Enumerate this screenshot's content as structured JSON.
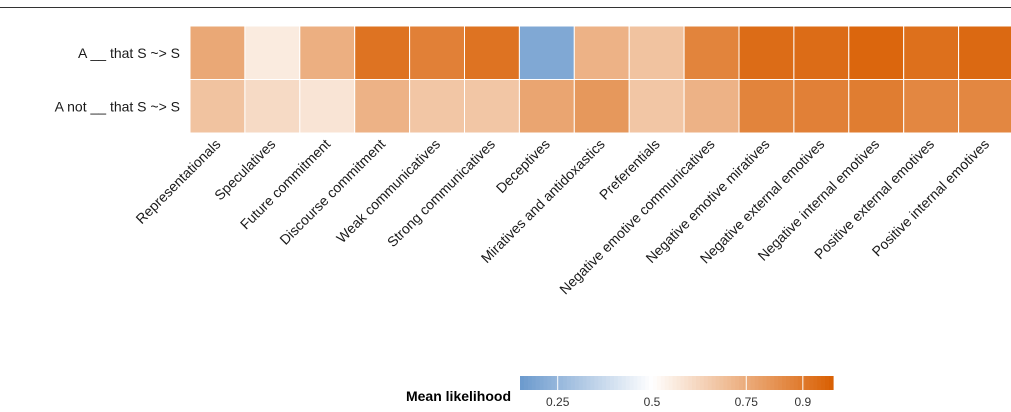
{
  "chart_data": {
    "type": "heatmap",
    "rows": [
      "A __ that S ~> S",
      "A not __ that S ~> S"
    ],
    "columns": [
      "Representationals",
      "Speculatives",
      "Future commitment",
      "Discourse commitment",
      "Weak communicatives",
      "Strong communicatives",
      "Deceptives",
      "Miratives and antidoxastics",
      "Preferentials",
      "Negative emotive communicatives",
      "Negative emotive miratives",
      "Negative external emotives",
      "Negative internal emotives",
      "Positive external emotives",
      "Positive internal emotives"
    ],
    "values": [
      [
        0.76,
        0.56,
        0.74,
        0.92,
        0.88,
        0.92,
        0.2,
        0.73,
        0.68,
        0.87,
        0.94,
        0.94,
        0.96,
        0.93,
        0.95
      ],
      [
        0.68,
        0.61,
        0.58,
        0.73,
        0.67,
        0.67,
        0.77,
        0.81,
        0.67,
        0.73,
        0.87,
        0.88,
        0.89,
        0.86,
        0.86
      ]
    ],
    "legend": {
      "title": "Mean likelihood",
      "ticks": [
        "0.25",
        "0.5",
        "0.75",
        "0.9"
      ],
      "tick_values": [
        0.25,
        0.5,
        0.75,
        0.9
      ],
      "range": [
        0.15,
        0.98
      ],
      "position": "bottom"
    },
    "colors": {
      "low": "#6b9acd",
      "mid": "#ffffff",
      "high": "#d95f02"
    }
  }
}
